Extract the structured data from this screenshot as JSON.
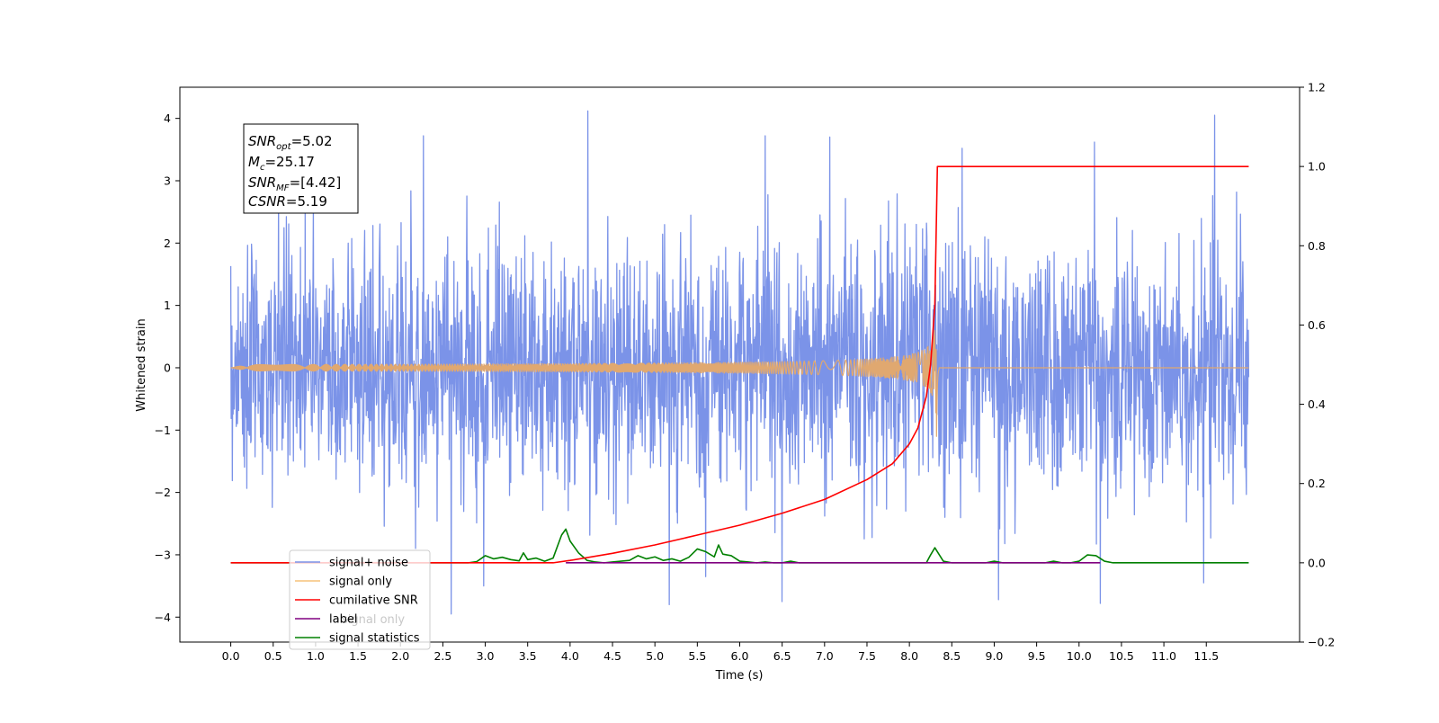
{
  "chart_data": {
    "type": "line",
    "xlabel": "Time (s)",
    "ylabel": "Whitened strain",
    "xlim": [
      -0.6,
      12.6
    ],
    "ylim_left": [
      -4.4,
      4.5
    ],
    "ylim_right": [
      -0.2,
      1.2
    ],
    "x_ticks": [
      0.0,
      0.5,
      1.0,
      1.5,
      2.0,
      2.5,
      3.0,
      3.5,
      4.0,
      4.5,
      5.0,
      5.5,
      6.0,
      6.5,
      7.0,
      7.5,
      8.0,
      8.5,
      9.0,
      9.5,
      10.0,
      10.5,
      11.0,
      11.5
    ],
    "x_tick_labels": [
      "0.0",
      "0.5",
      "1.0",
      "1.5",
      "2.0",
      "2.5",
      "3.0",
      "3.5",
      "4.0",
      "4.5",
      "5.0",
      "5.5",
      "6.0",
      "6.5",
      "7.0",
      "7.5",
      "8.0",
      "8.5",
      "9.0",
      "9.5",
      "10.0",
      "10.5",
      "11.0",
      "11.5"
    ],
    "y_ticks_left": [
      -4,
      -3,
      -2,
      -1,
      0,
      1,
      2,
      3,
      4
    ],
    "y_tick_labels_left": [
      "−4",
      "−3",
      "−2",
      "−1",
      "0",
      "1",
      "2",
      "3",
      "4"
    ],
    "y_ticks_right": [
      -0.2,
      0.0,
      0.2,
      0.4,
      0.6,
      0.8,
      1.0,
      1.2
    ],
    "y_tick_labels_right": [
      "−0.2",
      "0.0",
      "0.2",
      "0.4",
      "0.6",
      "0.8",
      "1.0",
      "1.2"
    ],
    "info_box": {
      "snr_opt_value": "=5.02",
      "mc_value": "=25.17",
      "snr_mf_value": "=[4.42]",
      "csnr_value": "=5.19"
    },
    "legend": {
      "placement": "lower-left",
      "entries": [
        {
          "label": "signal+ noise",
          "color": "#7b93e8"
        },
        {
          "label": "signal only",
          "color": "#f5c27a"
        },
        {
          "label": "cumilative SNR",
          "color": "#ff0000"
        },
        {
          "label": "label",
          "color": "#800080"
        },
        {
          "label": "signal statistics",
          "color": "#008000"
        }
      ],
      "hidden_text": "signal only"
    },
    "series": [
      {
        "name": "signal+ noise",
        "axis": "left",
        "color": "#7b93e8",
        "description_range": [
          0.0,
          12.0
        ],
        "spikes": [
          [
            4.21,
            4.12
          ],
          [
            11.6,
            4.05
          ],
          [
            2.27,
            3.72
          ],
          [
            6.3,
            3.72
          ],
          [
            7.06,
            3.7
          ],
          [
            8.62,
            3.52
          ],
          [
            10.18,
            3.62
          ],
          [
            2.6,
            -3.95
          ],
          [
            5.17,
            -3.8
          ],
          [
            6.5,
            -3.75
          ],
          [
            9.05,
            -3.72
          ],
          [
            10.25,
            -3.78
          ],
          [
            2.98,
            -3.5
          ],
          [
            5.6,
            -3.35
          ],
          [
            11.47,
            -3.45
          ]
        ]
      },
      {
        "name": "signal only",
        "axis": "left",
        "color": "#e0a870",
        "merger_time": 8.32,
        "min_at_merger": -1.1,
        "max_at_merger": 1.0
      },
      {
        "name": "cumilative SNR",
        "axis": "right",
        "color": "#ff0000",
        "x": [
          0.0,
          3.8,
          4.0,
          4.5,
          5.0,
          5.5,
          6.0,
          6.5,
          7.0,
          7.5,
          7.8,
          8.0,
          8.1,
          8.2,
          8.25,
          8.3,
          8.33,
          12.0
        ],
        "y": [
          0.0,
          0.0,
          0.006,
          0.024,
          0.045,
          0.07,
          0.095,
          0.125,
          0.16,
          0.21,
          0.25,
          0.3,
          0.34,
          0.42,
          0.5,
          0.65,
          1.0,
          1.0
        ]
      },
      {
        "name": "label",
        "axis": "right",
        "color": "#800080",
        "x": [
          3.95,
          10.25
        ],
        "y": [
          0.0,
          0.0
        ]
      },
      {
        "name": "signal statistics",
        "axis": "right",
        "color": "#008000",
        "x": [
          0.0,
          2.8,
          2.9,
          3.0,
          3.1,
          3.2,
          3.3,
          3.4,
          3.45,
          3.5,
          3.6,
          3.7,
          3.8,
          3.9,
          3.95,
          4.0,
          4.1,
          4.2,
          4.3,
          4.4,
          4.5,
          4.6,
          4.7,
          4.8,
          4.9,
          5.0,
          5.1,
          5.2,
          5.3,
          5.4,
          5.5,
          5.6,
          5.7,
          5.75,
          5.8,
          5.9,
          6.0,
          6.1,
          6.2,
          6.3,
          6.4,
          6.5,
          6.6,
          6.7,
          6.8,
          6.9,
          7.0,
          8.2,
          8.25,
          8.3,
          8.4,
          8.5,
          8.9,
          9.0,
          9.1,
          9.2,
          9.6,
          9.7,
          9.8,
          9.9,
          10.0,
          10.1,
          10.2,
          10.3,
          10.4,
          12.0
        ],
        "y": [
          0.0,
          0.0,
          0.003,
          0.018,
          0.01,
          0.014,
          0.008,
          0.005,
          0.025,
          0.008,
          0.012,
          0.004,
          0.012,
          0.07,
          0.085,
          0.055,
          0.025,
          0.006,
          0.002,
          0.0,
          0.002,
          0.004,
          0.006,
          0.018,
          0.01,
          0.015,
          0.006,
          0.01,
          0.004,
          0.014,
          0.035,
          0.028,
          0.015,
          0.045,
          0.022,
          0.018,
          0.004,
          0.002,
          0.0,
          0.002,
          0.0,
          0.0,
          0.004,
          0.0,
          0.0,
          0.0,
          0.0,
          0.0,
          0.02,
          0.038,
          0.004,
          0.0,
          0.0,
          0.004,
          0.0,
          0.0,
          0.0,
          0.004,
          0.0,
          0.0,
          0.004,
          0.02,
          0.018,
          0.004,
          0.0,
          0.0
        ]
      }
    ]
  }
}
